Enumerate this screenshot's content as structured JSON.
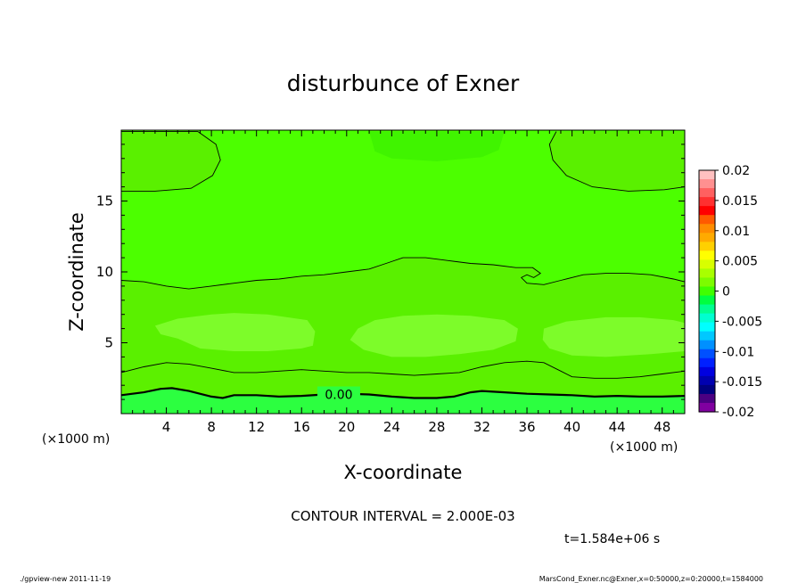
{
  "chart_data": {
    "type": "contour",
    "title": "disturbunce of Exner",
    "xlabel": "X-coordinate",
    "ylabel": "Z-coordinate",
    "x_unit_left": "(×1000 m)",
    "x_unit_right": "(×1000 m)",
    "xlim": [
      0,
      50
    ],
    "ylim": [
      0,
      20
    ],
    "xticks": [
      4,
      8,
      12,
      16,
      20,
      24,
      28,
      32,
      36,
      40,
      44,
      48
    ],
    "yticks": [
      5,
      10,
      15
    ],
    "contour_label": "0.00",
    "contour_interval_text": "CONTOUR INTERVAL = 2.000E-03",
    "time_text": "t=1.584e+06 s",
    "colorbar": {
      "ticks": [
        "0.02",
        "0.015",
        "0.01",
        "0.005",
        "0",
        "-0.005",
        "-0.01",
        "-0.015",
        "-0.02"
      ],
      "colors": [
        "#ffc0c0",
        "#ff9090",
        "#ff6060",
        "#ff3030",
        "#ff0000",
        "#ff5a00",
        "#ff8c00",
        "#ffaa00",
        "#ffd000",
        "#ffff00",
        "#d8ff00",
        "#a8ff00",
        "#7cfc00",
        "#40ff00",
        "#00ff40",
        "#00ff90",
        "#00ffd0",
        "#00ffff",
        "#00c8ff",
        "#0090ff",
        "#0050ff",
        "#0020ff",
        "#0000e0",
        "#0000b0",
        "#000080",
        "#4b0082",
        "#8000a0"
      ]
    },
    "fill_colors": {
      "upper": "#4cff00",
      "middle": "#5af000",
      "blob": "#7dfc2a",
      "lower_band": "#5cf000",
      "bottom": "#2cff40"
    },
    "contours": [
      {
        "name": "upper-left-lobe",
        "points": [
          [
            0,
            19.9
          ],
          [
            6.8,
            19.9
          ],
          [
            8.4,
            19.0
          ],
          [
            8.8,
            17.9
          ],
          [
            8.1,
            16.8
          ],
          [
            6.2,
            15.9
          ],
          [
            3,
            15.7
          ],
          [
            0,
            15.7
          ]
        ]
      },
      {
        "name": "upper-right-lobe",
        "points": [
          [
            38.6,
            19.9
          ],
          [
            38.0,
            19.0
          ],
          [
            38.3,
            17.9
          ],
          [
            39.5,
            16.8
          ],
          [
            41.8,
            16.0
          ],
          [
            45,
            15.7
          ],
          [
            48.2,
            15.8
          ],
          [
            50,
            16.0
          ]
        ]
      },
      {
        "name": "middle-line",
        "points": [
          [
            0,
            9.4
          ],
          [
            2,
            9.3
          ],
          [
            4,
            9.0
          ],
          [
            6,
            8.8
          ],
          [
            8,
            9.0
          ],
          [
            10,
            9.2
          ],
          [
            12,
            9.4
          ],
          [
            14,
            9.5
          ],
          [
            16,
            9.7
          ],
          [
            18,
            9.8
          ],
          [
            20,
            10.0
          ],
          [
            22,
            10.2
          ],
          [
            23.5,
            10.6
          ],
          [
            25,
            11.0
          ],
          [
            27,
            11.0
          ],
          [
            29,
            10.8
          ],
          [
            31,
            10.6
          ],
          [
            33,
            10.5
          ],
          [
            35,
            10.3
          ],
          [
            36.5,
            10.3
          ],
          [
            37.2,
            9.9
          ],
          [
            36.6,
            9.6
          ],
          [
            36.0,
            9.8
          ],
          [
            35.5,
            9.6
          ],
          [
            36.0,
            9.2
          ],
          [
            37.5,
            9.1
          ],
          [
            39,
            9.4
          ],
          [
            41,
            9.8
          ],
          [
            43,
            9.9
          ],
          [
            45,
            9.9
          ],
          [
            47,
            9.8
          ],
          [
            49,
            9.5
          ],
          [
            50,
            9.3
          ]
        ]
      },
      {
        "name": "lower-line",
        "points": [
          [
            0,
            2.9
          ],
          [
            2,
            3.3
          ],
          [
            4,
            3.6
          ],
          [
            6,
            3.5
          ],
          [
            8,
            3.2
          ],
          [
            10,
            2.9
          ],
          [
            12,
            2.9
          ],
          [
            14,
            3.0
          ],
          [
            16,
            3.1
          ],
          [
            18,
            3.0
          ],
          [
            20,
            2.9
          ],
          [
            22,
            2.9
          ],
          [
            24,
            2.8
          ],
          [
            26,
            2.7
          ],
          [
            28,
            2.8
          ],
          [
            30,
            2.9
          ],
          [
            32,
            3.3
          ],
          [
            34,
            3.6
          ],
          [
            36,
            3.7
          ],
          [
            37.5,
            3.6
          ],
          [
            39,
            3.0
          ],
          [
            40,
            2.6
          ],
          [
            42,
            2.5
          ],
          [
            44,
            2.5
          ],
          [
            46,
            2.6
          ],
          [
            48,
            2.8
          ],
          [
            50,
            3.0
          ]
        ]
      },
      {
        "name": "zero-line",
        "bold": true,
        "points": [
          [
            0,
            1.3
          ],
          [
            2,
            1.5
          ],
          [
            3.5,
            1.75
          ],
          [
            4.5,
            1.8
          ],
          [
            6,
            1.6
          ],
          [
            8,
            1.2
          ],
          [
            9,
            1.1
          ],
          [
            10,
            1.3
          ],
          [
            12,
            1.3
          ],
          [
            14,
            1.2
          ],
          [
            16,
            1.25
          ],
          [
            18,
            1.35
          ],
          [
            20,
            1.4
          ],
          [
            22,
            1.35
          ],
          [
            24,
            1.2
          ],
          [
            26,
            1.1
          ],
          [
            28,
            1.1
          ],
          [
            29.5,
            1.2
          ],
          [
            31,
            1.5
          ],
          [
            32,
            1.6
          ],
          [
            34,
            1.5
          ],
          [
            36,
            1.4
          ],
          [
            38,
            1.35
          ],
          [
            40,
            1.3
          ],
          [
            42,
            1.2
          ],
          [
            44,
            1.25
          ],
          [
            46,
            1.2
          ],
          [
            48,
            1.2
          ],
          [
            50,
            1.25
          ]
        ]
      }
    ],
    "blobs": [
      {
        "name": "blob-left",
        "points": [
          [
            3,
            6.2
          ],
          [
            5,
            6.7
          ],
          [
            8,
            7.0
          ],
          [
            10,
            7.1
          ],
          [
            13,
            7.0
          ],
          [
            16.5,
            6.6
          ],
          [
            17.2,
            5.8
          ],
          [
            17.0,
            4.8
          ],
          [
            16,
            4.6
          ],
          [
            13,
            4.4
          ],
          [
            10,
            4.4
          ],
          [
            7,
            4.6
          ],
          [
            5,
            5.3
          ],
          [
            3.5,
            5.6
          ]
        ]
      },
      {
        "name": "blob-middle",
        "points": [
          [
            21,
            6.0
          ],
          [
            22.5,
            6.6
          ],
          [
            25,
            6.9
          ],
          [
            28,
            7.0
          ],
          [
            31,
            6.9
          ],
          [
            34,
            6.6
          ],
          [
            35.2,
            6.0
          ],
          [
            35,
            5.1
          ],
          [
            33,
            4.5
          ],
          [
            30,
            4.2
          ],
          [
            27,
            4.0
          ],
          [
            24,
            4.0
          ],
          [
            21.5,
            4.5
          ],
          [
            20.3,
            5.2
          ]
        ]
      },
      {
        "name": "blob-right",
        "points": [
          [
            37.5,
            6.0
          ],
          [
            39.5,
            6.5
          ],
          [
            43,
            6.8
          ],
          [
            46,
            6.8
          ],
          [
            49,
            6.6
          ],
          [
            50,
            6.4
          ],
          [
            50,
            4.4
          ],
          [
            47,
            4.2
          ],
          [
            43,
            4.0
          ],
          [
            40,
            4.1
          ],
          [
            38,
            4.6
          ],
          [
            37.4,
            5.2
          ]
        ]
      }
    ],
    "upper_shade": {
      "name": "upper-shade",
      "points": [
        [
          22,
          19.9
        ],
        [
          22.5,
          18.5
        ],
        [
          24,
          18.0
        ],
        [
          28,
          17.8
        ],
        [
          32,
          18.1
        ],
        [
          33.5,
          18.6
        ],
        [
          34,
          19.9
        ]
      ]
    }
  },
  "footer": {
    "left": "./gpview-new   2011-11-19",
    "right": "MarsCond_Exner.nc@Exner,x=0:50000,z=0:20000,t=1584000"
  }
}
